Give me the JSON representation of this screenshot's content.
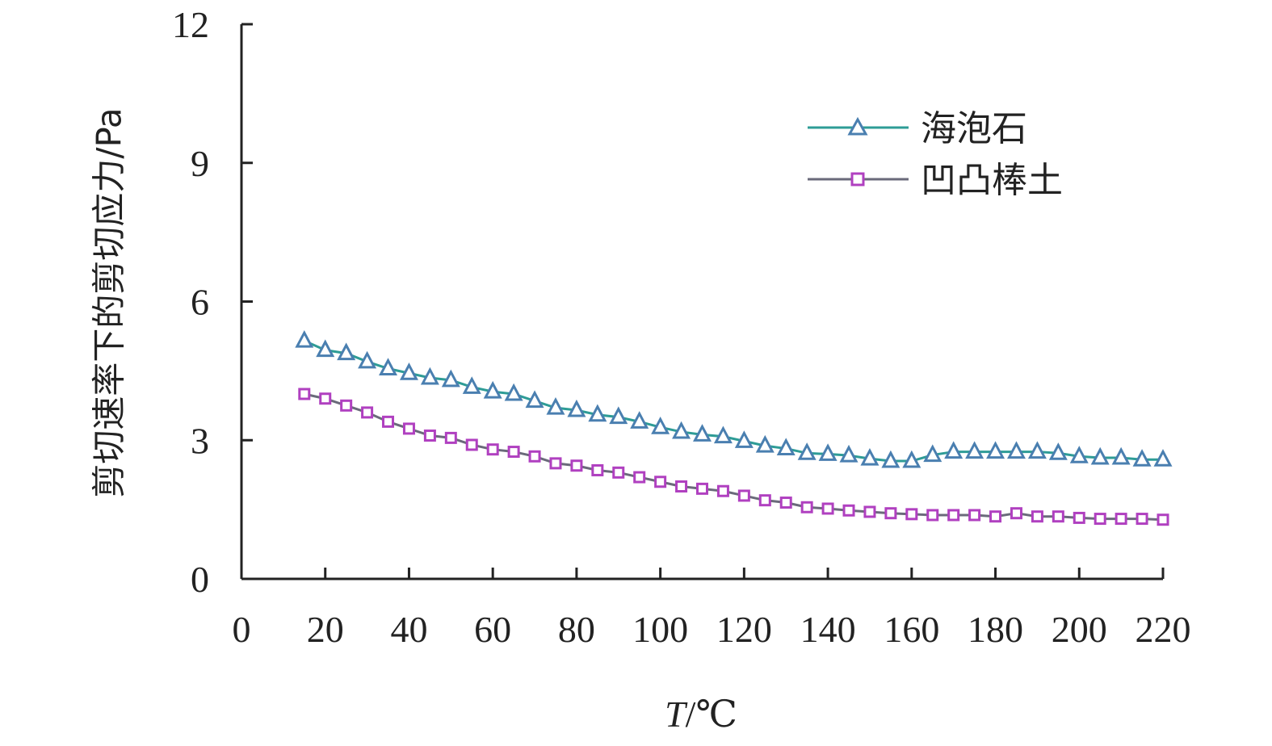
{
  "chart_data": {
    "type": "line",
    "xlabel_var": "T",
    "xlabel_unit": "/℃",
    "ylabel": "剪切速率下的剪切应力/Pa",
    "xlim": [
      0,
      220
    ],
    "ylim": [
      0,
      12
    ],
    "x_ticks": [
      0,
      20,
      40,
      60,
      80,
      100,
      120,
      140,
      160,
      180,
      200,
      220
    ],
    "y_ticks": [
      0,
      3,
      6,
      9,
      12
    ],
    "grid": false,
    "legend_position": "top-right",
    "x": [
      15,
      20,
      25,
      30,
      35,
      40,
      45,
      50,
      55,
      60,
      65,
      70,
      75,
      80,
      85,
      90,
      95,
      100,
      105,
      110,
      115,
      120,
      125,
      130,
      135,
      140,
      145,
      150,
      155,
      160,
      165,
      170,
      175,
      180,
      185,
      190,
      195,
      200,
      205,
      210,
      215,
      220
    ],
    "series": [
      {
        "name": "海泡石",
        "marker": "triangle",
        "line_color": "#2e9c96",
        "marker_color": "#4a7fb0",
        "values": [
          5.15,
          4.95,
          4.88,
          4.7,
          4.55,
          4.45,
          4.35,
          4.3,
          4.15,
          4.05,
          4.0,
          3.85,
          3.7,
          3.65,
          3.55,
          3.5,
          3.4,
          3.28,
          3.18,
          3.12,
          3.08,
          2.98,
          2.88,
          2.82,
          2.72,
          2.7,
          2.67,
          2.6,
          2.55,
          2.55,
          2.68,
          2.75,
          2.75,
          2.75,
          2.75,
          2.75,
          2.72,
          2.65,
          2.62,
          2.62,
          2.58,
          2.58
        ]
      },
      {
        "name": "凹凸棒土",
        "marker": "square",
        "line_color": "#6a6a7a",
        "marker_color": "#b040c0",
        "values": [
          4.0,
          3.9,
          3.75,
          3.6,
          3.4,
          3.25,
          3.1,
          3.05,
          2.9,
          2.8,
          2.75,
          2.65,
          2.5,
          2.45,
          2.35,
          2.3,
          2.2,
          2.1,
          2.0,
          1.95,
          1.9,
          1.8,
          1.7,
          1.65,
          1.55,
          1.52,
          1.48,
          1.45,
          1.42,
          1.4,
          1.38,
          1.38,
          1.38,
          1.35,
          1.42,
          1.35,
          1.35,
          1.32,
          1.3,
          1.3,
          1.3,
          1.28
        ]
      }
    ]
  }
}
